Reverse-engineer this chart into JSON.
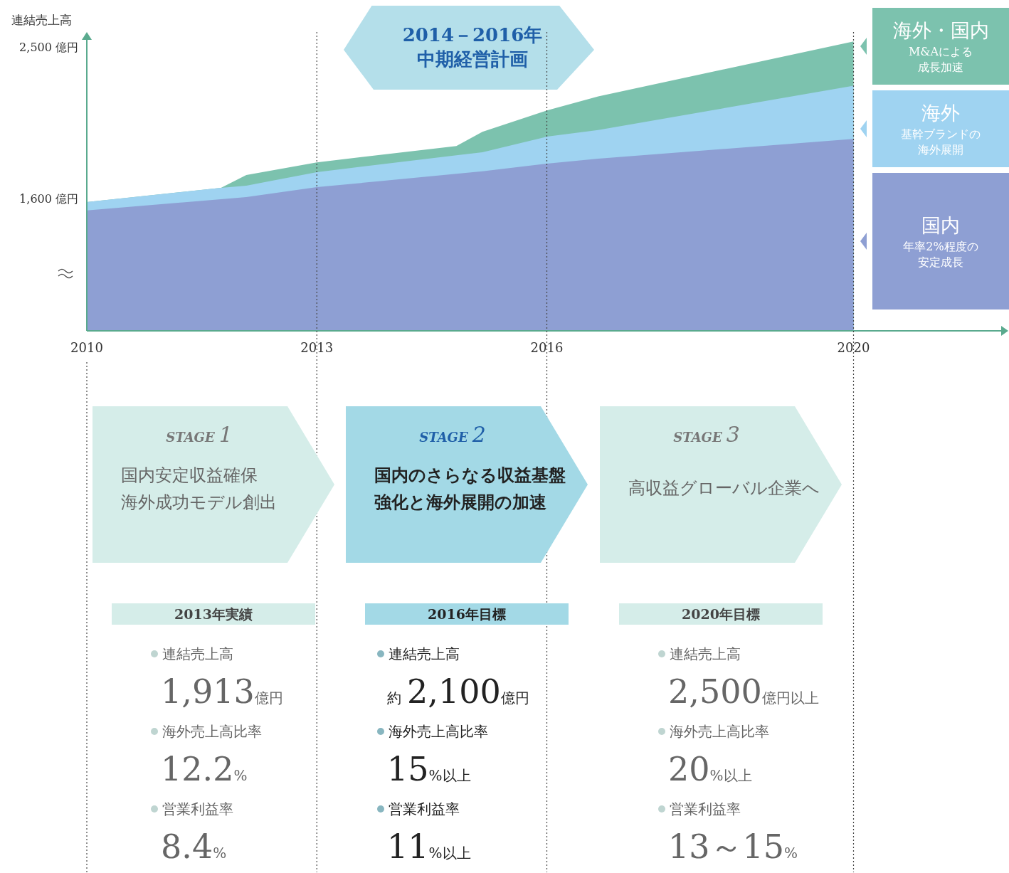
{
  "chart_data": [
    {
      "type": "area",
      "ylabel": "連結売上高",
      "x": [
        2010,
        2011.75,
        2012.08,
        2013,
        2014.82,
        2015.16,
        2016,
        2016.67,
        2020
      ],
      "series": [
        {
          "name": "海外・国内",
          "color": "#7cc2ae",
          "values": [
            1583,
            1667,
            1743,
            1818,
            1915,
            1999,
            2125,
            2209,
            2534
          ]
        },
        {
          "name": "海外",
          "color": "#9fd3f1",
          "values": [
            1583,
            1667,
            1680,
            1760,
            1860,
            1878,
            1970,
            2010,
            2272
          ]
        },
        {
          "name": "国内",
          "color": "#8e9fd3",
          "values": [
            1533,
            1600,
            1612,
            1671,
            1750,
            1765,
            1810,
            1840,
            1957
          ]
        }
      ],
      "xlim": [
        2010,
        2022
      ],
      "xticks": [
        2010,
        2013,
        2016,
        2020
      ],
      "ylim": [
        820,
        2590
      ],
      "yticks": [
        {
          "value": 1600,
          "label": "1,600 億円"
        },
        {
          "value": 2500,
          "label": "2,500 億円"
        }
      ],
      "ref_lines": [
        {
          "axis": "x",
          "value": 2013
        },
        {
          "axis": "x",
          "value": 2016
        },
        {
          "axis": "x",
          "value": 2020
        }
      ],
      "annotations": [
        "2014－2016年",
        "中期経営計画",
        "M&Aによる",
        "成長加速",
        "基幹ブランドの",
        "海外展開",
        "年率2%程度の",
        "安定成長"
      ],
      "legend": "right",
      "grid": false
    },
    {
      "type": "other",
      "categories": [
        "STAGE 1",
        "STAGE 2",
        "STAGE 3"
      ],
      "colors": [
        "#d5ede9",
        "#a3d9e6",
        "#d5ede9"
      ],
      "annotations": [
        "国内安定収益確保",
        "海外成功モデル創出",
        "国内のさらなる収益基盤強化と海外展開の加速",
        "高収益グローバル企業へ"
      ]
    },
    {
      "type": "other",
      "categories": [
        "2013年実績",
        "2016年目標",
        "2020年目標"
      ],
      "colors": [
        "#d5ede9",
        "#a3d9e6",
        "#d5ede9"
      ],
      "series": [
        {
          "name": "連結売上高",
          "values": [
            1913,
            2100,
            2500
          ],
          "value_labels": [
            "1,913億円",
            "約 2,100億円",
            "2,500億円以上"
          ]
        },
        {
          "name": "海外売上高比率",
          "values": [
            12.2,
            15,
            20
          ],
          "value_labels": [
            "12.2%",
            "15%以上",
            "20%以上"
          ]
        },
        {
          "name": "営業利益率",
          "values": [
            8.4,
            11,
            null
          ],
          "value_labels": [
            "8.4%",
            "11%以上",
            "13～15%"
          ]
        }
      ]
    }
  ]
}
